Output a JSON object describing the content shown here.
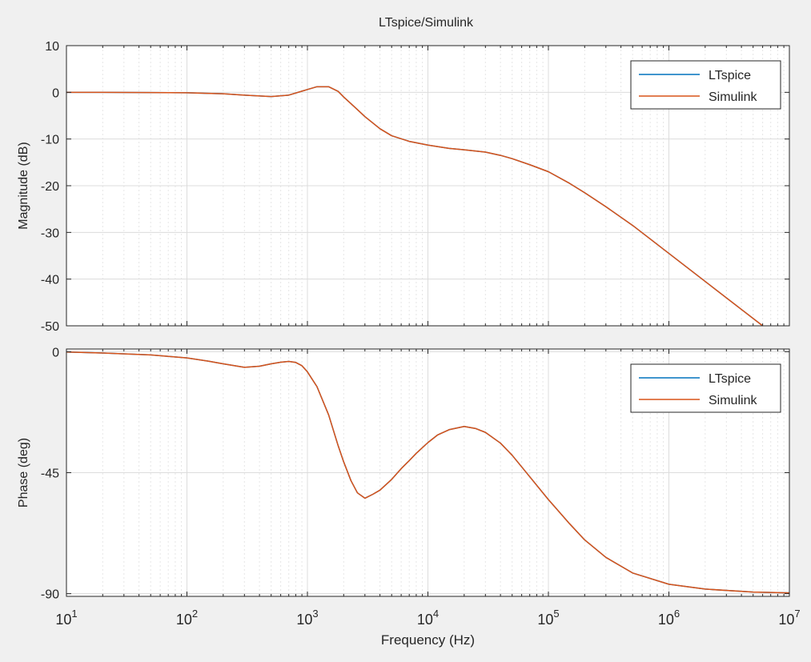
{
  "figure_title": "LTspice/Simulink",
  "colors": {
    "ltspice": "#0072BD",
    "simulink": "#D95319",
    "grid_major": "#dcdcdc",
    "grid_minor": "#e6e6e6",
    "axes_bg": "#ffffff",
    "figure_bg": "#f0f0f0"
  },
  "chart_data": [
    {
      "type": "line",
      "title": "LTspice/Simulink",
      "xlabel": "",
      "ylabel": "Magnitude (dB)",
      "xscale": "log",
      "xlim": [
        10,
        10000000
      ],
      "ylim": [
        -50,
        10
      ],
      "yticks": [
        10,
        0,
        -10,
        -20,
        -30,
        -40,
        -50
      ],
      "ytick_labels": [
        "10",
        "0",
        "-10",
        "-20",
        "-30",
        "-40",
        "-50"
      ],
      "grid": true,
      "legend": "top-right",
      "x": [
        10,
        20,
        50,
        100,
        200,
        300,
        500,
        700,
        1000,
        1200,
        1500,
        1800,
        2000,
        2500,
        3000,
        4000,
        5000,
        7000,
        10000,
        15000,
        20000,
        30000,
        40000,
        50000,
        70000,
        100000,
        150000,
        200000,
        300000,
        500000,
        1000000,
        2000000,
        4000000,
        6000000
      ],
      "series": [
        {
          "name": "LTspice",
          "values": [
            0,
            0,
            -0.05,
            -0.1,
            -0.3,
            -0.6,
            -0.9,
            -0.6,
            0.6,
            1.2,
            1.2,
            0.2,
            -1.0,
            -3.3,
            -5.2,
            -7.8,
            -9.3,
            -10.5,
            -11.3,
            -12.0,
            -12.3,
            -12.8,
            -13.5,
            -14.2,
            -15.5,
            -17.0,
            -19.5,
            -21.5,
            -24.5,
            -28.5,
            -34.5,
            -40.5,
            -46.5,
            -50
          ]
        },
        {
          "name": "Simulink",
          "values": [
            0,
            0,
            -0.05,
            -0.1,
            -0.3,
            -0.6,
            -0.9,
            -0.6,
            0.6,
            1.2,
            1.2,
            0.2,
            -1.0,
            -3.3,
            -5.2,
            -7.8,
            -9.3,
            -10.5,
            -11.3,
            -12.0,
            -12.3,
            -12.8,
            -13.5,
            -14.2,
            -15.5,
            -17.0,
            -19.5,
            -21.5,
            -24.5,
            -28.5,
            -34.5,
            -40.5,
            -46.5,
            -50
          ]
        }
      ]
    },
    {
      "type": "line",
      "title": "",
      "xlabel": "Frequency (Hz)",
      "ylabel": "Phase (deg)",
      "xscale": "log",
      "xlim": [
        10,
        10000000
      ],
      "ylim": [
        -91,
        1
      ],
      "yticks": [
        0,
        -45,
        -90
      ],
      "ytick_labels": [
        "0",
        "-45",
        "-90"
      ],
      "xtick_labels": [
        {
          "base": "10",
          "exp": "1"
        },
        {
          "base": "10",
          "exp": "2"
        },
        {
          "base": "10",
          "exp": "3"
        },
        {
          "base": "10",
          "exp": "4"
        },
        {
          "base": "10",
          "exp": "5"
        },
        {
          "base": "10",
          "exp": "6"
        },
        {
          "base": "10",
          "exp": "7"
        }
      ],
      "grid": true,
      "legend": "top-right",
      "x": [
        10,
        20,
        50,
        100,
        150,
        200,
        300,
        400,
        500,
        600,
        700,
        800,
        900,
        1000,
        1200,
        1500,
        1800,
        2000,
        2300,
        2600,
        3000,
        3500,
        4000,
        5000,
        6000,
        7000,
        8000,
        10000,
        12000,
        15000,
        20000,
        25000,
        30000,
        40000,
        50000,
        70000,
        100000,
        150000,
        200000,
        300000,
        500000,
        1000000,
        2000000,
        5000000,
        10000000
      ],
      "series": [
        {
          "name": "LTspice",
          "values": [
            -0.1,
            -0.5,
            -1.2,
            -2.3,
            -3.5,
            -4.5,
            -5.8,
            -5.4,
            -4.5,
            -3.9,
            -3.6,
            -4.0,
            -5.2,
            -7.5,
            -13.0,
            -23.5,
            -35.0,
            -41.0,
            -48.0,
            -52.5,
            -54.5,
            -53.0,
            -51.5,
            -47.5,
            -43.5,
            -40.5,
            -37.8,
            -33.8,
            -31.0,
            -29.0,
            -27.8,
            -28.6,
            -30.0,
            -34.0,
            -38.5,
            -46.5,
            -55.0,
            -64.0,
            -70.0,
            -76.5,
            -82.3,
            -86.5,
            -88.3,
            -89.4,
            -89.7
          ]
        },
        {
          "name": "Simulink",
          "values": [
            -0.1,
            -0.5,
            -1.2,
            -2.3,
            -3.5,
            -4.5,
            -5.8,
            -5.4,
            -4.5,
            -3.9,
            -3.6,
            -4.0,
            -5.2,
            -7.5,
            -13.0,
            -23.5,
            -35.0,
            -41.0,
            -48.0,
            -52.5,
            -54.5,
            -53.0,
            -51.5,
            -47.5,
            -43.5,
            -40.5,
            -37.8,
            -33.8,
            -31.0,
            -29.0,
            -27.8,
            -28.6,
            -30.0,
            -34.0,
            -38.5,
            -46.5,
            -55.0,
            -64.0,
            -70.0,
            -76.5,
            -82.3,
            -86.5,
            -88.3,
            -89.4,
            -89.7
          ]
        }
      ]
    }
  ]
}
